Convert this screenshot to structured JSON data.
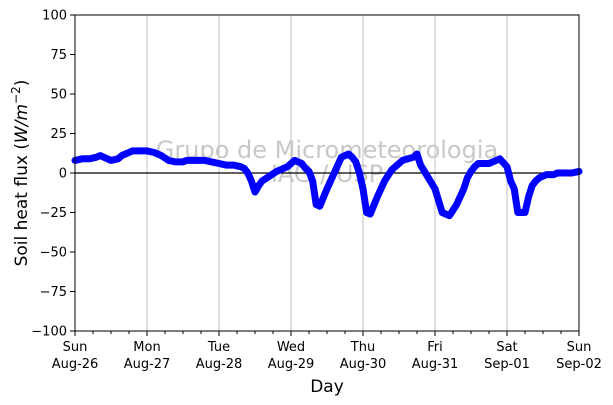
{
  "chart_data": {
    "type": "line",
    "xlabel": "Day",
    "ylabel_main": "Soil heat flux (",
    "ylabel_unit": "W/m",
    "ylabel_exp": "−2",
    "ylabel_close": ")",
    "ylim": [
      -100,
      100
    ],
    "yticks": [
      100,
      75,
      50,
      25,
      0,
      -25,
      -50,
      -75,
      -100
    ],
    "ytick_labels": [
      "100",
      "75",
      "50",
      "25",
      "0",
      "−25",
      "−50",
      "−75",
      "−100"
    ],
    "xlim": [
      0,
      7
    ],
    "xticks": [
      {
        "day": "Sun",
        "date": "Aug-26"
      },
      {
        "day": "Mon",
        "date": "Aug-27"
      },
      {
        "day": "Tue",
        "date": "Aug-28"
      },
      {
        "day": "Wed",
        "date": "Aug-29"
      },
      {
        "day": "Thu",
        "date": "Aug-30"
      },
      {
        "day": "Fri",
        "date": "Aug-31"
      },
      {
        "day": "Sat",
        "date": "Sep-01"
      },
      {
        "day": "Sun",
        "date": "Sep-02"
      }
    ],
    "grid": "vertical",
    "zero_line": true,
    "watermark": [
      "Grupo de Micrometeorologia",
      "IAG / USP"
    ],
    "series_color": "#0000ff",
    "x": [
      0,
      0.1,
      0.2,
      0.3,
      0.35,
      0.4,
      0.5,
      0.6,
      0.65,
      0.7,
      0.8,
      0.9,
      1.0,
      1.1,
      1.2,
      1.3,
      1.4,
      1.5,
      1.55,
      1.6,
      1.7,
      1.8,
      1.9,
      2.0,
      2.1,
      2.2,
      2.3,
      2.35,
      2.4,
      2.45,
      2.5,
      2.55,
      2.6,
      2.7,
      2.8,
      2.95,
      3.05,
      3.15,
      3.2,
      3.25,
      3.3,
      3.35,
      3.4,
      3.5,
      3.55,
      3.65,
      3.7,
      3.8,
      3.85,
      3.9,
      3.95,
      4.0,
      4.05,
      4.1,
      4.2,
      4.3,
      4.4,
      4.5,
      4.55,
      4.7,
      4.75,
      4.8,
      5.0,
      5.1,
      5.2,
      5.3,
      5.4,
      5.45,
      5.5,
      5.55,
      5.6,
      5.7,
      5.75,
      5.8,
      5.9,
      6.0,
      6.05,
      6.1,
      6.15,
      6.25,
      6.3,
      6.35,
      6.4,
      6.45,
      6.5,
      6.55,
      6.6,
      6.65,
      6.7,
      6.8,
      6.9,
      7.0
    ],
    "y": [
      8,
      9,
      9,
      10,
      11,
      10,
      8,
      9,
      11,
      12,
      14,
      14,
      14,
      13,
      11,
      8,
      7,
      7,
      8,
      8,
      8,
      8,
      7,
      6,
      5,
      5,
      4,
      3,
      0,
      -5,
      -12,
      -8,
      -5,
      -2,
      1,
      4,
      8,
      6,
      3,
      1,
      -5,
      -20,
      -21,
      -10,
      -5,
      5,
      10,
      12,
      10,
      7,
      0,
      -10,
      -25,
      -26,
      -15,
      -5,
      2,
      6,
      8,
      10,
      12,
      5,
      -10,
      -25,
      -27,
      -20,
      -10,
      -3,
      1,
      4,
      6,
      6,
      6,
      7,
      9,
      4,
      -5,
      -10,
      -25,
      -25,
      -15,
      -8,
      -5,
      -3,
      -2,
      -1,
      -1,
      -1,
      0,
      0,
      0,
      1
    ]
  }
}
